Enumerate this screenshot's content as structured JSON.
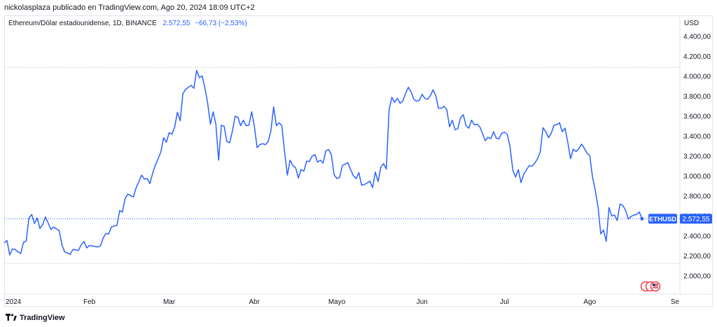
{
  "header": {
    "attribution": "nickolasplaza publicado en TradingView.com, Ago 20, 2024 18:09 UTC+2"
  },
  "legend": {
    "symbol": "Ethereum/Dólar estadounidense, 1D, BINANCE",
    "price": "2.572,55",
    "change": "−66,73 (−2,53%)"
  },
  "axis_unit": "USD",
  "footer": {
    "brand": "TradingView",
    "logo_icon": "tradingview-logo-icon"
  },
  "colors": {
    "line": "#2962ff",
    "badge": "#2962ff",
    "grid_dotted": "#b2b5be"
  },
  "events_icon": "flag-events-icon",
  "chart_data": {
    "type": "line",
    "title": "",
    "xlabel": "",
    "ylabel": "",
    "ylim": [
      1800,
      4500
    ],
    "y_ticks": [
      2000,
      2200,
      2400,
      2600,
      2800,
      3000,
      3200,
      3400,
      3600,
      3800,
      4000,
      4200,
      4400
    ],
    "y_tick_labels": [
      "2.000,00",
      "2.200,00",
      "2.400,00",
      "2.600,00",
      "2.800,00",
      "3.000,00",
      "3.200,00",
      "3.400,00",
      "3.600,00",
      "3.800,00",
      "4.000,00",
      "4.200,00",
      "4.400,00"
    ],
    "x_tick_labels": [
      {
        "label": "2024",
        "date": "2024-01-01"
      },
      {
        "label": "Feb",
        "date": "2024-02-01"
      },
      {
        "label": "Mar",
        "date": "2024-03-01"
      },
      {
        "label": "Abr",
        "date": "2024-04-01"
      },
      {
        "label": "Mayo",
        "date": "2024-05-01"
      },
      {
        "label": "Jun",
        "date": "2024-06-01"
      },
      {
        "label": "Jul",
        "date": "2024-07-01"
      },
      {
        "label": "Ago",
        "date": "2024-08-01"
      },
      {
        "label": "Se",
        "date": "2024-09-01"
      }
    ],
    "xlim": [
      "2024-01-01",
      "2024-09-01"
    ],
    "reference_lines": [
      4090,
      2125
    ],
    "last_value": 2572.55,
    "last_label": "2.572,55",
    "series": [
      {
        "name": "ETHUSD",
        "points": [
          [
            "2024-01-01",
            2330
          ],
          [
            "2024-01-02",
            2355
          ],
          [
            "2024-01-03",
            2210
          ],
          [
            "2024-01-04",
            2270
          ],
          [
            "2024-01-05",
            2265
          ],
          [
            "2024-01-06",
            2240
          ],
          [
            "2024-01-07",
            2225
          ],
          [
            "2024-01-08",
            2335
          ],
          [
            "2024-01-09",
            2350
          ],
          [
            "2024-01-10",
            2580
          ],
          [
            "2024-01-11",
            2615
          ],
          [
            "2024-01-12",
            2525
          ],
          [
            "2024-01-13",
            2580
          ],
          [
            "2024-01-14",
            2475
          ],
          [
            "2024-01-15",
            2515
          ],
          [
            "2024-01-16",
            2590
          ],
          [
            "2024-01-17",
            2530
          ],
          [
            "2024-01-18",
            2465
          ],
          [
            "2024-01-19",
            2490
          ],
          [
            "2024-01-20",
            2470
          ],
          [
            "2024-01-21",
            2455
          ],
          [
            "2024-01-22",
            2310
          ],
          [
            "2024-01-23",
            2240
          ],
          [
            "2024-01-24",
            2230
          ],
          [
            "2024-01-25",
            2215
          ],
          [
            "2024-01-26",
            2265
          ],
          [
            "2024-01-27",
            2260
          ],
          [
            "2024-01-28",
            2255
          ],
          [
            "2024-01-29",
            2310
          ],
          [
            "2024-01-30",
            2345
          ],
          [
            "2024-01-31",
            2280
          ],
          [
            "2024-02-01",
            2305
          ],
          [
            "2024-02-02",
            2300
          ],
          [
            "2024-02-03",
            2295
          ],
          [
            "2024-02-04",
            2290
          ],
          [
            "2024-02-05",
            2300
          ],
          [
            "2024-02-06",
            2380
          ],
          [
            "2024-02-07",
            2425
          ],
          [
            "2024-02-08",
            2420
          ],
          [
            "2024-02-09",
            2490
          ],
          [
            "2024-02-10",
            2500
          ],
          [
            "2024-02-11",
            2505
          ],
          [
            "2024-02-12",
            2655
          ],
          [
            "2024-02-13",
            2640
          ],
          [
            "2024-02-14",
            2780
          ],
          [
            "2024-02-15",
            2820
          ],
          [
            "2024-02-16",
            2805
          ],
          [
            "2024-02-17",
            2790
          ],
          [
            "2024-02-18",
            2885
          ],
          [
            "2024-02-19",
            2945
          ],
          [
            "2024-02-20",
            3010
          ],
          [
            "2024-02-21",
            2970
          ],
          [
            "2024-02-22",
            2975
          ],
          [
            "2024-02-23",
            2925
          ],
          [
            "2024-02-24",
            3030
          ],
          [
            "2024-02-25",
            3110
          ],
          [
            "2024-02-26",
            3175
          ],
          [
            "2024-02-27",
            3245
          ],
          [
            "2024-02-28",
            3385
          ],
          [
            "2024-02-29",
            3340
          ],
          [
            "2024-03-01",
            3435
          ],
          [
            "2024-03-02",
            3420
          ],
          [
            "2024-03-03",
            3490
          ],
          [
            "2024-03-04",
            3640
          ],
          [
            "2024-03-05",
            3555
          ],
          [
            "2024-03-06",
            3825
          ],
          [
            "2024-03-07",
            3870
          ],
          [
            "2024-03-08",
            3890
          ],
          [
            "2024-03-09",
            3910
          ],
          [
            "2024-03-10",
            3880
          ],
          [
            "2024-03-11",
            4060
          ],
          [
            "2024-03-12",
            3985
          ],
          [
            "2024-03-13",
            4005
          ],
          [
            "2024-03-14",
            3885
          ],
          [
            "2024-03-15",
            3735
          ],
          [
            "2024-03-16",
            3520
          ],
          [
            "2024-03-17",
            3645
          ],
          [
            "2024-03-18",
            3520
          ],
          [
            "2024-03-19",
            3160
          ],
          [
            "2024-03-20",
            3510
          ],
          [
            "2024-03-21",
            3500
          ],
          [
            "2024-03-22",
            3345
          ],
          [
            "2024-03-23",
            3335
          ],
          [
            "2024-03-24",
            3450
          ],
          [
            "2024-03-25",
            3600
          ],
          [
            "2024-03-26",
            3590
          ],
          [
            "2024-03-27",
            3505
          ],
          [
            "2024-03-28",
            3560
          ],
          [
            "2024-03-29",
            3505
          ],
          [
            "2024-03-30",
            3510
          ],
          [
            "2024-03-31",
            3645
          ],
          [
            "2024-04-01",
            3500
          ],
          [
            "2024-04-02",
            3285
          ],
          [
            "2024-04-03",
            3315
          ],
          [
            "2024-04-04",
            3325
          ],
          [
            "2024-04-05",
            3315
          ],
          [
            "2024-04-06",
            3345
          ],
          [
            "2024-04-07",
            3450
          ],
          [
            "2024-04-08",
            3695
          ],
          [
            "2024-04-09",
            3505
          ],
          [
            "2024-04-10",
            3535
          ],
          [
            "2024-04-11",
            3505
          ],
          [
            "2024-04-12",
            3240
          ],
          [
            "2024-04-13",
            3010
          ],
          [
            "2024-04-14",
            3160
          ],
          [
            "2024-04-15",
            3105
          ],
          [
            "2024-04-16",
            3085
          ],
          [
            "2024-04-17",
            2980
          ],
          [
            "2024-04-18",
            3065
          ],
          [
            "2024-04-19",
            3050
          ],
          [
            "2024-04-20",
            3150
          ],
          [
            "2024-04-21",
            3145
          ],
          [
            "2024-04-22",
            3200
          ],
          [
            "2024-04-23",
            3215
          ],
          [
            "2024-04-24",
            3140
          ],
          [
            "2024-04-25",
            3160
          ],
          [
            "2024-04-26",
            3130
          ],
          [
            "2024-04-27",
            3255
          ],
          [
            "2024-04-28",
            3265
          ],
          [
            "2024-04-29",
            3215
          ],
          [
            "2024-04-30",
            3015
          ],
          [
            "2024-05-01",
            2975
          ],
          [
            "2024-05-02",
            2985
          ],
          [
            "2024-05-03",
            3105
          ],
          [
            "2024-05-04",
            3120
          ],
          [
            "2024-05-05",
            3135
          ],
          [
            "2024-05-06",
            3065
          ],
          [
            "2024-05-07",
            3005
          ],
          [
            "2024-05-08",
            2975
          ],
          [
            "2024-05-09",
            3035
          ],
          [
            "2024-05-10",
            2910
          ],
          [
            "2024-05-11",
            2915
          ],
          [
            "2024-05-12",
            2930
          ],
          [
            "2024-05-13",
            2950
          ],
          [
            "2024-05-14",
            2885
          ],
          [
            "2024-05-15",
            3040
          ],
          [
            "2024-05-16",
            2945
          ],
          [
            "2024-05-17",
            3090
          ],
          [
            "2024-05-18",
            3125
          ],
          [
            "2024-05-19",
            3070
          ],
          [
            "2024-05-20",
            3665
          ],
          [
            "2024-05-21",
            3790
          ],
          [
            "2024-05-22",
            3740
          ],
          [
            "2024-05-23",
            3780
          ],
          [
            "2024-05-24",
            3730
          ],
          [
            "2024-05-25",
            3750
          ],
          [
            "2024-05-26",
            3830
          ],
          [
            "2024-05-27",
            3890
          ],
          [
            "2024-05-28",
            3845
          ],
          [
            "2024-05-29",
            3770
          ],
          [
            "2024-05-30",
            3750
          ],
          [
            "2024-05-31",
            3760
          ],
          [
            "2024-06-01",
            3820
          ],
          [
            "2024-06-02",
            3780
          ],
          [
            "2024-06-03",
            3770
          ],
          [
            "2024-06-04",
            3805
          ],
          [
            "2024-06-05",
            3865
          ],
          [
            "2024-06-06",
            3805
          ],
          [
            "2024-06-07",
            3680
          ],
          [
            "2024-06-08",
            3680
          ],
          [
            "2024-06-09",
            3700
          ],
          [
            "2024-06-10",
            3665
          ],
          [
            "2024-06-11",
            3495
          ],
          [
            "2024-06-12",
            3560
          ],
          [
            "2024-06-13",
            3465
          ],
          [
            "2024-06-14",
            3475
          ],
          [
            "2024-06-15",
            3585
          ],
          [
            "2024-06-16",
            3615
          ],
          [
            "2024-06-17",
            3505
          ],
          [
            "2024-06-18",
            3480
          ],
          [
            "2024-06-19",
            3560
          ],
          [
            "2024-06-20",
            3515
          ],
          [
            "2024-06-21",
            3520
          ],
          [
            "2024-06-22",
            3495
          ],
          [
            "2024-06-23",
            3425
          ],
          [
            "2024-06-24",
            3355
          ],
          [
            "2024-06-25",
            3390
          ],
          [
            "2024-06-26",
            3375
          ],
          [
            "2024-06-27",
            3445
          ],
          [
            "2024-06-28",
            3380
          ],
          [
            "2024-06-29",
            3375
          ],
          [
            "2024-06-30",
            3430
          ],
          [
            "2024-07-01",
            3440
          ],
          [
            "2024-07-02",
            3420
          ],
          [
            "2024-07-03",
            3295
          ],
          [
            "2024-07-04",
            3060
          ],
          [
            "2024-07-05",
            2990
          ],
          [
            "2024-07-06",
            3065
          ],
          [
            "2024-07-07",
            2935
          ],
          [
            "2024-07-08",
            3020
          ],
          [
            "2024-07-09",
            3065
          ],
          [
            "2024-07-10",
            3105
          ],
          [
            "2024-07-11",
            3100
          ],
          [
            "2024-07-12",
            3130
          ],
          [
            "2024-07-13",
            3175
          ],
          [
            "2024-07-14",
            3245
          ],
          [
            "2024-07-15",
            3485
          ],
          [
            "2024-07-16",
            3445
          ],
          [
            "2024-07-17",
            3385
          ],
          [
            "2024-07-18",
            3430
          ],
          [
            "2024-07-19",
            3510
          ],
          [
            "2024-07-20",
            3515
          ],
          [
            "2024-07-21",
            3535
          ],
          [
            "2024-07-22",
            3445
          ],
          [
            "2024-07-23",
            3480
          ],
          [
            "2024-07-24",
            3340
          ],
          [
            "2024-07-25",
            3175
          ],
          [
            "2024-07-26",
            3270
          ],
          [
            "2024-07-27",
            3245
          ],
          [
            "2024-07-28",
            3275
          ],
          [
            "2024-07-29",
            3320
          ],
          [
            "2024-07-30",
            3280
          ],
          [
            "2024-07-31",
            3230
          ],
          [
            "2024-08-01",
            3205
          ],
          [
            "2024-08-02",
            2990
          ],
          [
            "2024-08-03",
            2860
          ],
          [
            "2024-08-04",
            2690
          ],
          [
            "2024-08-05",
            2420
          ],
          [
            "2024-08-06",
            2460
          ],
          [
            "2024-08-07",
            2345
          ],
          [
            "2024-08-08",
            2685
          ],
          [
            "2024-08-09",
            2600
          ],
          [
            "2024-08-10",
            2610
          ],
          [
            "2024-08-11",
            2555
          ],
          [
            "2024-08-12",
            2720
          ],
          [
            "2024-08-13",
            2705
          ],
          [
            "2024-08-14",
            2660
          ],
          [
            "2024-08-15",
            2570
          ],
          [
            "2024-08-16",
            2595
          ],
          [
            "2024-08-17",
            2610
          ],
          [
            "2024-08-18",
            2615
          ],
          [
            "2024-08-19",
            2640
          ],
          [
            "2024-08-20",
            2572.55
          ]
        ]
      }
    ]
  }
}
